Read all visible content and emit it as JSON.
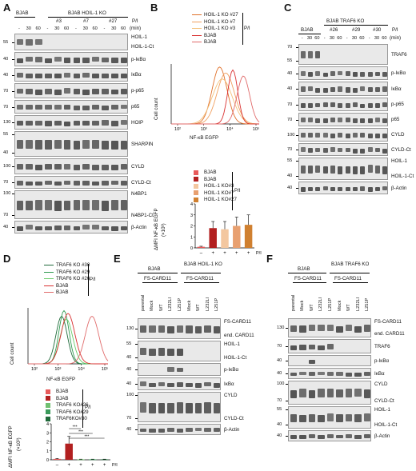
{
  "panels": {
    "A": {
      "letter": "A",
      "group_left": "BJAB",
      "group_right": "BJAB HOIL-1 KO",
      "clones": [
        "#3",
        "#7",
        "#27"
      ],
      "pi": "P/I",
      "min": "(min)",
      "lane_times": [
        "-",
        "30",
        "60",
        "-",
        "30",
        "60",
        "-",
        "30",
        "60",
        "-",
        "30",
        "60"
      ],
      "blots": [
        {
          "mw": [
            "55"
          ],
          "labels": [
            "HOIL-1",
            "HOIL-1-Ct"
          ]
        },
        {
          "mw": [
            "40"
          ],
          "labels": [
            "p-IκBα"
          ]
        },
        {
          "mw": [
            "40"
          ],
          "labels": [
            "IκBα"
          ]
        },
        {
          "mw": [
            "70"
          ],
          "labels": [
            "p-p65"
          ]
        },
        {
          "mw": [
            "70"
          ],
          "labels": [
            "p65"
          ]
        },
        {
          "mw": [
            "130"
          ],
          "labels": [
            "HOIP"
          ]
        },
        {
          "mw": [
            "55",
            "40"
          ],
          "labels": [
            "SHARPIN"
          ]
        },
        {
          "mw": [
            "100"
          ],
          "labels": [
            "CYLD"
          ]
        },
        {
          "mw": [
            "70"
          ],
          "labels": [
            "CYLD-Ct"
          ]
        },
        {
          "mw": [
            "100",
            "70"
          ],
          "labels": [
            "N4BP1",
            "N4BP1-Ct"
          ]
        },
        {
          "mw": [
            "40"
          ],
          "labels": [
            "β-Actin"
          ]
        }
      ]
    },
    "B": {
      "letter": "B",
      "legend_top": [
        "HOIL-1 KO #27",
        "HOIL-1 KO #7",
        "HOIL-1 KO #3",
        "BJAB",
        "BJAB"
      ],
      "legend_top_colors": [
        "#e0702a",
        "#f0a060",
        "#f3c07a",
        "#d93030",
        "#e06a6a"
      ],
      "pi": "P/I",
      "hist_ylabel": "Cell count",
      "hist_xlabel": "NF-κB EGFP",
      "hist_ticks": [
        "10²",
        "10³",
        "10⁴",
        "10⁵"
      ],
      "bar_legend": [
        "BJAB",
        "BJAB",
        "HOIL-1 KO#3",
        "HOIL-1 KO#7",
        "HOIL-1 KO#27"
      ],
      "bar_legend_colors": [
        "#e85a5a",
        "#b22020",
        "#f3c7a0",
        "#e8a070",
        "#d08030"
      ],
      "bar_ylabel": "ΔMFI NF-κB EGFP",
      "bar_yunit": "(×10³)",
      "bar_pi_row": [
        "–",
        "+",
        "+",
        "+",
        "+"
      ],
      "bar_pi_label": "P/I"
    },
    "C": {
      "letter": "C",
      "group_left": "BJAB",
      "group_right": "BJAB TRAF6 KO",
      "clones": [
        "#26",
        "#29",
        "#30"
      ],
      "pi": "P/I",
      "min": "(min)",
      "lane_times": [
        "-",
        "30",
        "60",
        "-",
        "30",
        "60",
        "-",
        "30",
        "60",
        "-",
        "30",
        "60"
      ],
      "blots": [
        {
          "mw": [
            "70",
            "55"
          ],
          "labels": [
            "TRAF6"
          ]
        },
        {
          "mw": [
            "40"
          ],
          "labels": [
            "p-IκBα"
          ]
        },
        {
          "mw": [
            "40"
          ],
          "labels": [
            "IκBα"
          ]
        },
        {
          "mw": [
            "70"
          ],
          "labels": [
            "p-p65"
          ]
        },
        {
          "mw": [
            "70"
          ],
          "labels": [
            "p65"
          ]
        },
        {
          "mw": [
            "100"
          ],
          "labels": [
            "CYLD"
          ]
        },
        {
          "mw": [
            "70"
          ],
          "labels": [
            "CYLD-Ct"
          ]
        },
        {
          "mw": [
            "55",
            "40"
          ],
          "labels": [
            "HOIL-1",
            "HOIL-1-Ct"
          ]
        },
        {
          "mw": [
            "40"
          ],
          "labels": [
            "β-Actin"
          ]
        }
      ]
    },
    "D": {
      "letter": "D",
      "legend_top": [
        "TRAF6 KO #30",
        "TRAF6 KO #29",
        "TRAF6 KO #26",
        "BJAB",
        "BJAB"
      ],
      "legend_top_colors": [
        "#1f6a3a",
        "#2f9a50",
        "#6acb6a",
        "#d93030",
        "#e06a6a"
      ],
      "pi": "P/I",
      "hist_ylabel": "Cell count",
      "hist_xlabel": "NF-κB EGFP",
      "hist_ticks": [
        "10²",
        "10³",
        "10⁴",
        "10⁵"
      ],
      "bar_legend": [
        "BJAB",
        "BJAB",
        "TRAF6 KO#26",
        "TRAF6 KO#29",
        "TRAF6KO#30"
      ],
      "bar_legend_colors": [
        "#e85a5a",
        "#b22020",
        "#70c070",
        "#3a9a5a",
        "#1f6a3a"
      ],
      "bar_ylabel": "ΔMFI NF-κB EGFP",
      "bar_yunit": "(×10³)",
      "bar_pi_row": [
        "–",
        "+",
        "+",
        "+",
        "+"
      ],
      "bar_pi_label": "P/I",
      "sig": [
        "***",
        "***",
        "***"
      ]
    },
    "E": {
      "letter": "E",
      "group_left": "BJAB",
      "group_right": "BJAB HOIL-1 KO",
      "fs": "FS-CARD11",
      "lanes": [
        "parental",
        "Mock",
        "WT",
        "L232LI",
        "L251P",
        "Mock",
        "WT",
        "L232LI",
        "L251P"
      ],
      "blots": [
        {
          "mw": [
            "130"
          ],
          "labels": [
            "FS-CARD11",
            "end. CARD11"
          ]
        },
        {
          "mw": [
            "55",
            "40"
          ],
          "labels": [
            "HOIL-1",
            "HOIL-1-Ct"
          ]
        },
        {
          "mw": [
            "40"
          ],
          "labels": [
            "p-IκBα"
          ]
        },
        {
          "mw": [
            "40"
          ],
          "labels": [
            "IκBα"
          ]
        },
        {
          "mw": [
            "100",
            "70"
          ],
          "labels": [
            "CYLD",
            "CYLD-Ct"
          ]
        },
        {
          "mw": [
            "40"
          ],
          "labels": [
            "β-Actin"
          ]
        }
      ]
    },
    "F": {
      "letter": "F",
      "group_left": "BJAB",
      "group_right": "BJAB TRAF6 KO",
      "fs": "FS-CARD11",
      "lanes": [
        "parental",
        "Mock",
        "WT",
        "L232LI",
        "L251P",
        "Mock",
        "WT",
        "L232LI",
        "L251P"
      ],
      "blots": [
        {
          "mw": [
            "130"
          ],
          "labels": [
            "FS-CARD11",
            "end. CARD11"
          ]
        },
        {
          "mw": [
            "70"
          ],
          "labels": [
            "TRAF6"
          ]
        },
        {
          "mw": [
            "40"
          ],
          "labels": [
            "p-IκBα"
          ]
        },
        {
          "mw": [
            "40"
          ],
          "labels": [
            "IκBα"
          ]
        },
        {
          "mw": [
            "100",
            "70"
          ],
          "labels": [
            "CYLD",
            "CYLD-Ct"
          ]
        },
        {
          "mw": [
            "55",
            "40"
          ],
          "labels": [
            "HOIL-1",
            "HOIL-1-Ct"
          ]
        },
        {
          "mw": [
            "40"
          ],
          "labels": [
            "β-Actin"
          ]
        }
      ]
    }
  },
  "chart_data": [
    {
      "type": "bar",
      "panel": "B",
      "categories": [
        "BJAB",
        "BJAB",
        "HOIL-1 KO#3",
        "HOIL-1 KO#7",
        "HOIL-1 KO#27"
      ],
      "pi": [
        "–",
        "+",
        "+",
        "+",
        "+"
      ],
      "values": [
        0.1,
        1.8,
        1.7,
        2.0,
        2.1
      ],
      "errors": [
        0.05,
        0.6,
        0.7,
        0.8,
        0.9
      ],
      "colors": [
        "#e85a5a",
        "#b22020",
        "#f3c7a0",
        "#e8a070",
        "#d08030"
      ],
      "ylabel": "ΔMFI NF-κB EGFP (×10³)",
      "ylim": [
        0,
        4
      ],
      "yticks": [
        0,
        1,
        2,
        3,
        4
      ]
    },
    {
      "type": "bar",
      "panel": "D",
      "categories": [
        "BJAB",
        "BJAB",
        "TRAF6 KO#26",
        "TRAF6 KO#29",
        "TRAF6KO#30"
      ],
      "pi": [
        "–",
        "+",
        "+",
        "+",
        "+"
      ],
      "values": [
        0.1,
        1.8,
        0.05,
        0.05,
        0.05
      ],
      "errors": [
        0.05,
        0.8,
        0.02,
        0.02,
        0.02
      ],
      "colors": [
        "#e85a5a",
        "#b22020",
        "#70c070",
        "#3a9a5a",
        "#1f6a3a"
      ],
      "ylabel": "ΔMFI NF-κB EGFP (×10³)",
      "ylim": [
        0,
        4
      ],
      "yticks": [
        0,
        1,
        2,
        3,
        4
      ]
    }
  ]
}
